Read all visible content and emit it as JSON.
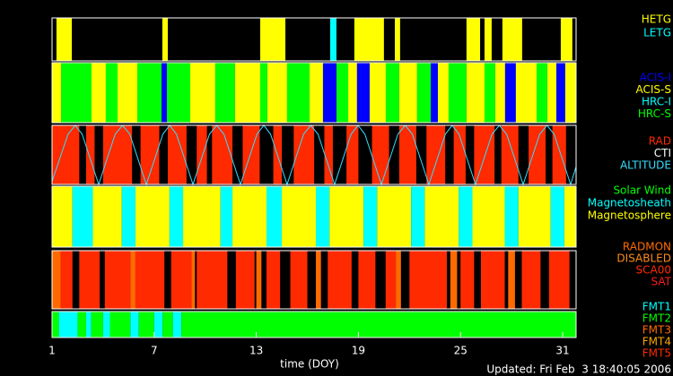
{
  "chart_data": {
    "type": "timeline",
    "xlabel": "time (DOY)",
    "footer": "Updated: Fri Feb  3 18:40:05 2006",
    "xlim": [
      1,
      31.79
    ],
    "xticks": [
      1,
      7,
      13,
      19,
      25,
      31
    ],
    "panels": [
      {
        "legend": [
          {
            "name": "HETG",
            "color": "#ffff00"
          },
          {
            "name": "LETG",
            "color": "#00ffff"
          }
        ],
        "segments": [
          [
            1.26,
            2.16,
            0
          ],
          [
            7.48,
            7.8,
            0
          ],
          [
            13.23,
            14.71,
            0
          ],
          [
            17.34,
            17.71,
            1
          ],
          [
            18.76,
            20.5,
            0
          ],
          [
            21.14,
            21.45,
            0
          ],
          [
            25.35,
            26.15,
            0
          ],
          [
            26.41,
            26.83,
            0
          ],
          [
            27.46,
            28.62,
            0
          ],
          [
            30.89,
            31.57,
            0
          ]
        ]
      },
      {
        "legend": [
          {
            "name": "ACIS-I",
            "color": "#0000ff"
          },
          {
            "name": "ACIS-S",
            "color": "#ffff00"
          },
          {
            "name": "HRC-I",
            "color": "#00ffff"
          },
          {
            "name": "HRC-S",
            "color": "#00ff00"
          }
        ],
        "segments": [
          [
            1,
            1.53,
            1
          ],
          [
            1.53,
            3.32,
            3
          ],
          [
            3.32,
            4.16,
            1
          ],
          [
            4.16,
            4.85,
            3
          ],
          [
            4.85,
            6.01,
            1
          ],
          [
            6.01,
            7.43,
            3
          ],
          [
            7.43,
            7.75,
            0
          ],
          [
            7.75,
            9.12,
            3
          ],
          [
            9.12,
            10.59,
            1
          ],
          [
            10.59,
            11.75,
            3
          ],
          [
            11.75,
            13.23,
            1
          ],
          [
            13.23,
            13.65,
            3
          ],
          [
            13.65,
            14.81,
            1
          ],
          [
            14.81,
            16.13,
            3
          ],
          [
            16.13,
            16.92,
            1
          ],
          [
            16.92,
            17.71,
            0
          ],
          [
            17.71,
            18.4,
            3
          ],
          [
            18.4,
            18.92,
            1
          ],
          [
            18.92,
            19.66,
            0
          ],
          [
            19.66,
            20.61,
            1
          ],
          [
            20.61,
            21.4,
            3
          ],
          [
            21.4,
            22.45,
            1
          ],
          [
            22.45,
            23.25,
            3
          ],
          [
            23.25,
            23.67,
            0
          ],
          [
            23.67,
            24.3,
            1
          ],
          [
            24.3,
            25.35,
            3
          ],
          [
            25.35,
            26.41,
            1
          ],
          [
            26.41,
            27.04,
            3
          ],
          [
            27.04,
            27.62,
            1
          ],
          [
            27.62,
            28.25,
            0
          ],
          [
            28.25,
            29.47,
            1
          ],
          [
            29.47,
            30.1,
            3
          ],
          [
            30.1,
            30.63,
            1
          ],
          [
            30.63,
            31.15,
            0
          ],
          [
            31.15,
            31.79,
            1
          ]
        ]
      },
      {
        "legend": [
          {
            "name": "RAD",
            "color": "#ff2a00"
          },
          {
            "name": "CTI",
            "color": "#ffffff"
          },
          {
            "name": "ALTITUDE",
            "color": "#33ddff"
          }
        ],
        "segments": [
          [
            1,
            2.6,
            0
          ],
          [
            3.0,
            3.5,
            0
          ],
          [
            4.0,
            5.7,
            0
          ],
          [
            6.2,
            7.3,
            0
          ],
          [
            7.8,
            8.9,
            0
          ],
          [
            9.5,
            10.1,
            0
          ],
          [
            10.4,
            11.6,
            0
          ],
          [
            12.2,
            13.2,
            0
          ],
          [
            14.0,
            14.5,
            0
          ],
          [
            15.2,
            16.4,
            0
          ],
          [
            17.0,
            17.5,
            0
          ],
          [
            18.3,
            19.0,
            0
          ],
          [
            19.8,
            20.8,
            0
          ],
          [
            21.4,
            22.4,
            0
          ],
          [
            23.0,
            24.1,
            0
          ],
          [
            24.6,
            25.3,
            0
          ],
          [
            25.8,
            27.0,
            0
          ],
          [
            27.4,
            28.4,
            0
          ],
          [
            29.0,
            30.0,
            0
          ],
          [
            30.4,
            31.2,
            0
          ]
        ],
        "altitude": {
          "ylim": [
            0,
            1
          ],
          "x": [
            1,
            1.94,
            2.36,
            2.77,
            3.74,
            4.71,
            5.14,
            5.57,
            6.54,
            7.51,
            7.91,
            8.31,
            9.28,
            10.25,
            10.68,
            11.1,
            12.07,
            13.04,
            13.44,
            13.84,
            14.81,
            15.78,
            16.2,
            16.63,
            17.6,
            18.57,
            18.98,
            19.38,
            20.35,
            21.32,
            21.75,
            22.17,
            23.14,
            24.11,
            24.51,
            24.91,
            25.88,
            26.85,
            27.28,
            27.71,
            28.68,
            29.65,
            30.08,
            30.5,
            31.47,
            31.79
          ],
          "y": [
            0.05,
            0.85,
            1,
            0.85,
            0,
            0.85,
            1,
            0.85,
            0,
            0.85,
            1,
            0.85,
            0,
            0.85,
            1,
            0.85,
            0,
            0.85,
            1,
            0.85,
            0,
            0.85,
            1,
            0.85,
            0,
            0.85,
            1,
            0.85,
            0,
            0.85,
            1,
            0.85,
            0,
            0.85,
            1,
            0.85,
            0,
            0.85,
            1,
            0.85,
            0,
            0.85,
            1,
            0.85,
            0,
            0.3
          ]
        }
      },
      {
        "legend": [
          {
            "name": "Solar Wind",
            "color": "#00ff00"
          },
          {
            "name": "Magnetosheath",
            "color": "#00ffff"
          },
          {
            "name": "Magnetosphere",
            "color": "#ffff00"
          }
        ],
        "segments": [
          [
            1,
            2.2,
            2
          ],
          [
            2.2,
            3.4,
            1
          ],
          [
            3.4,
            5.1,
            2
          ],
          [
            5.1,
            5.9,
            1
          ],
          [
            5.9,
            7.9,
            2
          ],
          [
            7.9,
            8.7,
            1
          ],
          [
            8.7,
            10.9,
            2
          ],
          [
            10.9,
            11.6,
            1
          ],
          [
            11.6,
            13.6,
            2
          ],
          [
            13.6,
            14.5,
            1
          ],
          [
            14.5,
            16.5,
            2
          ],
          [
            16.5,
            17.3,
            1
          ],
          [
            17.3,
            19.3,
            2
          ],
          [
            19.3,
            20.1,
            1
          ],
          [
            20.1,
            22.1,
            2
          ],
          [
            22.1,
            22.9,
            1
          ],
          [
            22.9,
            24.9,
            2
          ],
          [
            24.9,
            25.7,
            1
          ],
          [
            25.7,
            27.6,
            2
          ],
          [
            27.6,
            28.4,
            1
          ],
          [
            28.4,
            30.3,
            2
          ],
          [
            30.3,
            31.1,
            1
          ],
          [
            31.1,
            31.79,
            2
          ]
        ]
      },
      {
        "legend": [
          {
            "name": "RADMON",
            "color": "#ff6a00"
          },
          {
            "name": "DISABLED",
            "color": "#ff8c1a"
          },
          {
            "name": "SCA00",
            "color": "#ff2a00"
          },
          {
            "name": "SAT",
            "color": "#ff1a1a"
          }
        ],
        "segments": [
          [
            1,
            1.5,
            0
          ],
          [
            1.5,
            2.2,
            2
          ],
          [
            2.6,
            3.8,
            2
          ],
          [
            4.1,
            5.6,
            2
          ],
          [
            5.6,
            5.9,
            0
          ],
          [
            5.9,
            7.6,
            2
          ],
          [
            8.0,
            9.2,
            2
          ],
          [
            9.2,
            9.4,
            0
          ],
          [
            9.5,
            11.3,
            2
          ],
          [
            11.8,
            12.9,
            2
          ],
          [
            13.0,
            13.3,
            0
          ],
          [
            13.6,
            14.4,
            2
          ],
          [
            15.0,
            16.0,
            2
          ],
          [
            16.5,
            16.8,
            0
          ],
          [
            17.2,
            18.6,
            2
          ],
          [
            19.0,
            20.0,
            2
          ],
          [
            20.6,
            21.2,
            2
          ],
          [
            21.2,
            21.5,
            0
          ],
          [
            22.0,
            24.2,
            2
          ],
          [
            24.4,
            24.8,
            0
          ],
          [
            25.0,
            25.8,
            2
          ],
          [
            26.2,
            27.6,
            2
          ],
          [
            27.8,
            28.2,
            0
          ],
          [
            28.6,
            29.7,
            2
          ],
          [
            30.2,
            31.4,
            2
          ]
        ]
      },
      {
        "legend": [
          {
            "name": "FMT1",
            "color": "#00ffff"
          },
          {
            "name": "FMT2",
            "color": "#00ff00"
          },
          {
            "name": "FMT3",
            "color": "#ff6a00"
          },
          {
            "name": "FMT4",
            "color": "#ffa500"
          },
          {
            "name": "FMT5",
            "color": "#ff2a00"
          }
        ],
        "segments": [
          [
            1,
            1.4,
            1
          ],
          [
            1.4,
            2.5,
            0
          ],
          [
            2.5,
            3.0,
            1
          ],
          [
            3.0,
            3.3,
            0
          ],
          [
            3.3,
            4.0,
            1
          ],
          [
            4.0,
            4.4,
            0
          ],
          [
            4.4,
            5.6,
            1
          ],
          [
            5.6,
            6.1,
            0
          ],
          [
            6.1,
            7.0,
            1
          ],
          [
            7.0,
            7.5,
            0
          ],
          [
            7.5,
            8.1,
            1
          ],
          [
            8.1,
            8.6,
            0
          ],
          [
            8.6,
            31.79,
            1
          ]
        ]
      }
    ]
  }
}
